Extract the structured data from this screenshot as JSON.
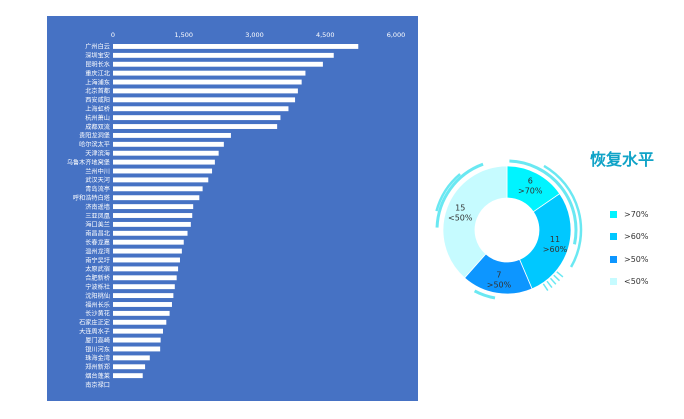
{
  "chart_data": [
    {
      "type": "bar",
      "orientation": "horizontal",
      "title": "",
      "xlabel": "",
      "ylabel": "",
      "xlim": [
        0,
        6000
      ],
      "x_ticks": [
        "0",
        "1,500",
        "3,000",
        "4,500",
        "6,000"
      ],
      "x_tick_values": [
        0,
        1500,
        3000,
        4500,
        6000
      ],
      "grid": false,
      "bar_color": "#ffffff",
      "background": "#4672c4",
      "categories": [
        "广州白云",
        "深圳宝安",
        "昆明长水",
        "重庆江北",
        "上海浦东",
        "北京首都",
        "西安咸阳",
        "上海虹桥",
        "杭州萧山",
        "成都双流",
        "贵阳龙洞堡",
        "哈尔滨太平",
        "天津滨海",
        "乌鲁木齐地窝堡",
        "兰州中川",
        "武汉天河",
        "青岛流亭",
        "呼和浩特白塔",
        "济南遥墙",
        "三亚凤凰",
        "海口美兰",
        "南昌昌北",
        "长春龙嘉",
        "温州龙湾",
        "南宁吴圩",
        "太原武宿",
        "合肥新桥",
        "宁波栎社",
        "沈阳桃仙",
        "福州长乐",
        "长沙黄花",
        "石家庄正定",
        "大连周水子",
        "厦门高崎",
        "银川河东",
        "珠海金湾",
        "郑州新郑",
        "烟台蓬莱",
        "南京禄口"
      ],
      "values": [
        5200,
        4680,
        4450,
        4080,
        4000,
        3920,
        3860,
        3720,
        3550,
        3480,
        2500,
        2350,
        2240,
        2160,
        2100,
        2020,
        1900,
        1830,
        1700,
        1680,
        1650,
        1580,
        1500,
        1460,
        1420,
        1380,
        1350,
        1310,
        1280,
        1250,
        1200,
        1130,
        1060,
        1010,
        1000,
        780,
        680,
        630,
        0
      ]
    },
    {
      "type": "pie",
      "variant": "donut",
      "title": "恢复水平",
      "legend_position": "right",
      "slices": [
        {
          "name": ">70%",
          "value": 6,
          "color": "#00f4ff",
          "label_value": "6",
          "label_name": ">70%"
        },
        {
          "name": ">60%",
          "value": 11,
          "color": "#00c8ff",
          "label_value": "11",
          "label_name": ">60%"
        },
        {
          "name": ">50%",
          "value": 7,
          "color": "#0d96ff",
          "label_value": "7",
          "label_name": ">50%"
        },
        {
          "name": "<50%",
          "value": 15,
          "color": "#c6fbff",
          "label_value": "15",
          "label_name": "<50%"
        }
      ],
      "decor_color": "#6ae8f2"
    }
  ]
}
